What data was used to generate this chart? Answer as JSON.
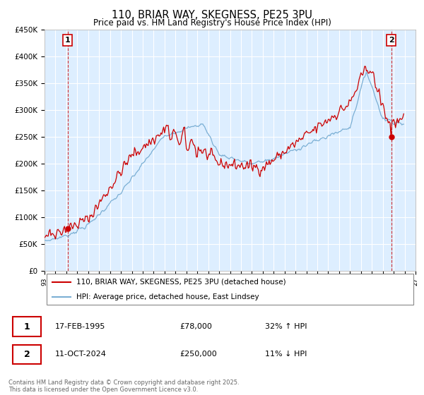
{
  "title": "110, BRIAR WAY, SKEGNESS, PE25 3PU",
  "subtitle": "Price paid vs. HM Land Registry's House Price Index (HPI)",
  "ylabel_ticks": [
    "£0",
    "£50K",
    "£100K",
    "£150K",
    "£200K",
    "£250K",
    "£300K",
    "£350K",
    "£400K",
    "£450K"
  ],
  "ylim": [
    0,
    450000
  ],
  "xlim_start": 1993.0,
  "xlim_end": 2027.0,
  "hpi_color": "#7bafd4",
  "price_color": "#cc0000",
  "bg_color": "#ddeeff",
  "grid_color": "#ffffff",
  "legend_label_red": "110, BRIAR WAY, SKEGNESS, PE25 3PU (detached house)",
  "legend_label_blue": "HPI: Average price, detached house, East Lindsey",
  "annotation1_date": "17-FEB-1995",
  "annotation1_price": "£78,000",
  "annotation1_hpi": "32% ↑ HPI",
  "annotation2_date": "11-OCT-2024",
  "annotation2_price": "£250,000",
  "annotation2_hpi": "11% ↓ HPI",
  "footer": "Contains HM Land Registry data © Crown copyright and database right 2025.\nThis data is licensed under the Open Government Licence v3.0.",
  "sale1_x": 1995.12,
  "sale1_y": 78000,
  "sale2_x": 2024.78,
  "sale2_y": 250000
}
